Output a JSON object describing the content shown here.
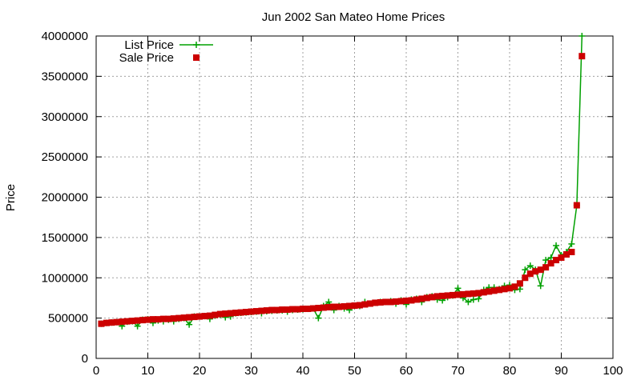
{
  "chart_data": {
    "type": "line",
    "title": "Jun 2002 San Mateo Home Prices",
    "xlabel": "",
    "ylabel": "Price",
    "xlim": [
      0,
      100
    ],
    "ylim": [
      0,
      4000000
    ],
    "x_ticks": [
      0,
      10,
      20,
      30,
      40,
      50,
      60,
      70,
      80,
      90,
      100
    ],
    "y_ticks": [
      0,
      500000,
      1000000,
      1500000,
      2000000,
      2500000,
      3000000,
      3500000,
      4000000
    ],
    "grid": true,
    "legend_position": "top-left",
    "series": [
      {
        "name": "List Price",
        "style": "line+cross",
        "color": "#00a000",
        "x": [
          1,
          2,
          3,
          4,
          5,
          6,
          7,
          8,
          9,
          10,
          11,
          12,
          13,
          14,
          15,
          16,
          17,
          18,
          19,
          20,
          21,
          22,
          23,
          24,
          25,
          26,
          27,
          28,
          29,
          30,
          31,
          32,
          33,
          34,
          35,
          36,
          37,
          38,
          39,
          40,
          41,
          42,
          43,
          44,
          45,
          46,
          47,
          48,
          49,
          50,
          51,
          52,
          53,
          54,
          55,
          56,
          57,
          58,
          59,
          60,
          61,
          62,
          63,
          64,
          65,
          66,
          67,
          68,
          69,
          70,
          71,
          72,
          73,
          74,
          75,
          76,
          77,
          78,
          79,
          80,
          81,
          82,
          83,
          84,
          85,
          86,
          87,
          88,
          89,
          90,
          91,
          92,
          93,
          94
        ],
        "values": [
          430000,
          440000,
          445000,
          450000,
          400000,
          455000,
          460000,
          400000,
          480000,
          485000,
          440000,
          470000,
          460000,
          480000,
          460000,
          490000,
          500000,
          420000,
          520000,
          520000,
          525000,
          490000,
          530000,
          540000,
          510000,
          520000,
          560000,
          565000,
          570000,
          575000,
          580000,
          560000,
          585000,
          590000,
          595000,
          595000,
          580000,
          600000,
          605000,
          610000,
          615000,
          620000,
          500000,
          650000,
          700000,
          600000,
          650000,
          620000,
          600000,
          650000,
          650000,
          700000,
          680000,
          690000,
          700000,
          700000,
          710000,
          680000,
          720000,
          670000,
          730000,
          740000,
          700000,
          760000,
          770000,
          730000,
          720000,
          760000,
          780000,
          870000,
          750000,
          700000,
          730000,
          740000,
          850000,
          880000,
          880000,
          860000,
          900000,
          910000,
          850000,
          860000,
          1100000,
          1150000,
          1100000,
          900000,
          1220000,
          1250000,
          1400000,
          1280000,
          1320000,
          1420000,
          1900000,
          4000000
        ]
      },
      {
        "name": "Sale Price",
        "style": "square",
        "color": "#cc0000",
        "x": [
          1,
          2,
          3,
          4,
          5,
          6,
          7,
          8,
          9,
          10,
          11,
          12,
          13,
          14,
          15,
          16,
          17,
          18,
          19,
          20,
          21,
          22,
          23,
          24,
          25,
          26,
          27,
          28,
          29,
          30,
          31,
          32,
          33,
          34,
          35,
          36,
          37,
          38,
          39,
          40,
          41,
          42,
          43,
          44,
          45,
          46,
          47,
          48,
          49,
          50,
          51,
          52,
          53,
          54,
          55,
          56,
          57,
          58,
          59,
          60,
          61,
          62,
          63,
          64,
          65,
          66,
          67,
          68,
          69,
          70,
          71,
          72,
          73,
          74,
          75,
          76,
          77,
          78,
          79,
          80,
          81,
          82,
          83,
          84,
          85,
          86,
          87,
          88,
          89,
          90,
          91,
          92,
          93,
          94
        ],
        "values": [
          430000,
          440000,
          445000,
          450000,
          455000,
          460000,
          465000,
          470000,
          475000,
          480000,
          485000,
          485000,
          490000,
          490000,
          495000,
          500000,
          505000,
          510000,
          515000,
          520000,
          525000,
          530000,
          540000,
          550000,
          555000,
          560000,
          565000,
          570000,
          575000,
          580000,
          585000,
          590000,
          595000,
          600000,
          600000,
          605000,
          605000,
          610000,
          610000,
          615000,
          615000,
          620000,
          625000,
          630000,
          635000,
          640000,
          640000,
          645000,
          650000,
          655000,
          660000,
          670000,
          680000,
          690000,
          695000,
          700000,
          700000,
          705000,
          710000,
          715000,
          720000,
          730000,
          740000,
          750000,
          760000,
          770000,
          775000,
          780000,
          785000,
          790000,
          795000,
          800000,
          805000,
          810000,
          820000,
          830000,
          840000,
          850000,
          860000,
          870000,
          890000,
          930000,
          1000000,
          1050000,
          1080000,
          1100000,
          1130000,
          1180000,
          1220000,
          1250000,
          1290000,
          1320000,
          1900000,
          3750000
        ]
      }
    ]
  }
}
